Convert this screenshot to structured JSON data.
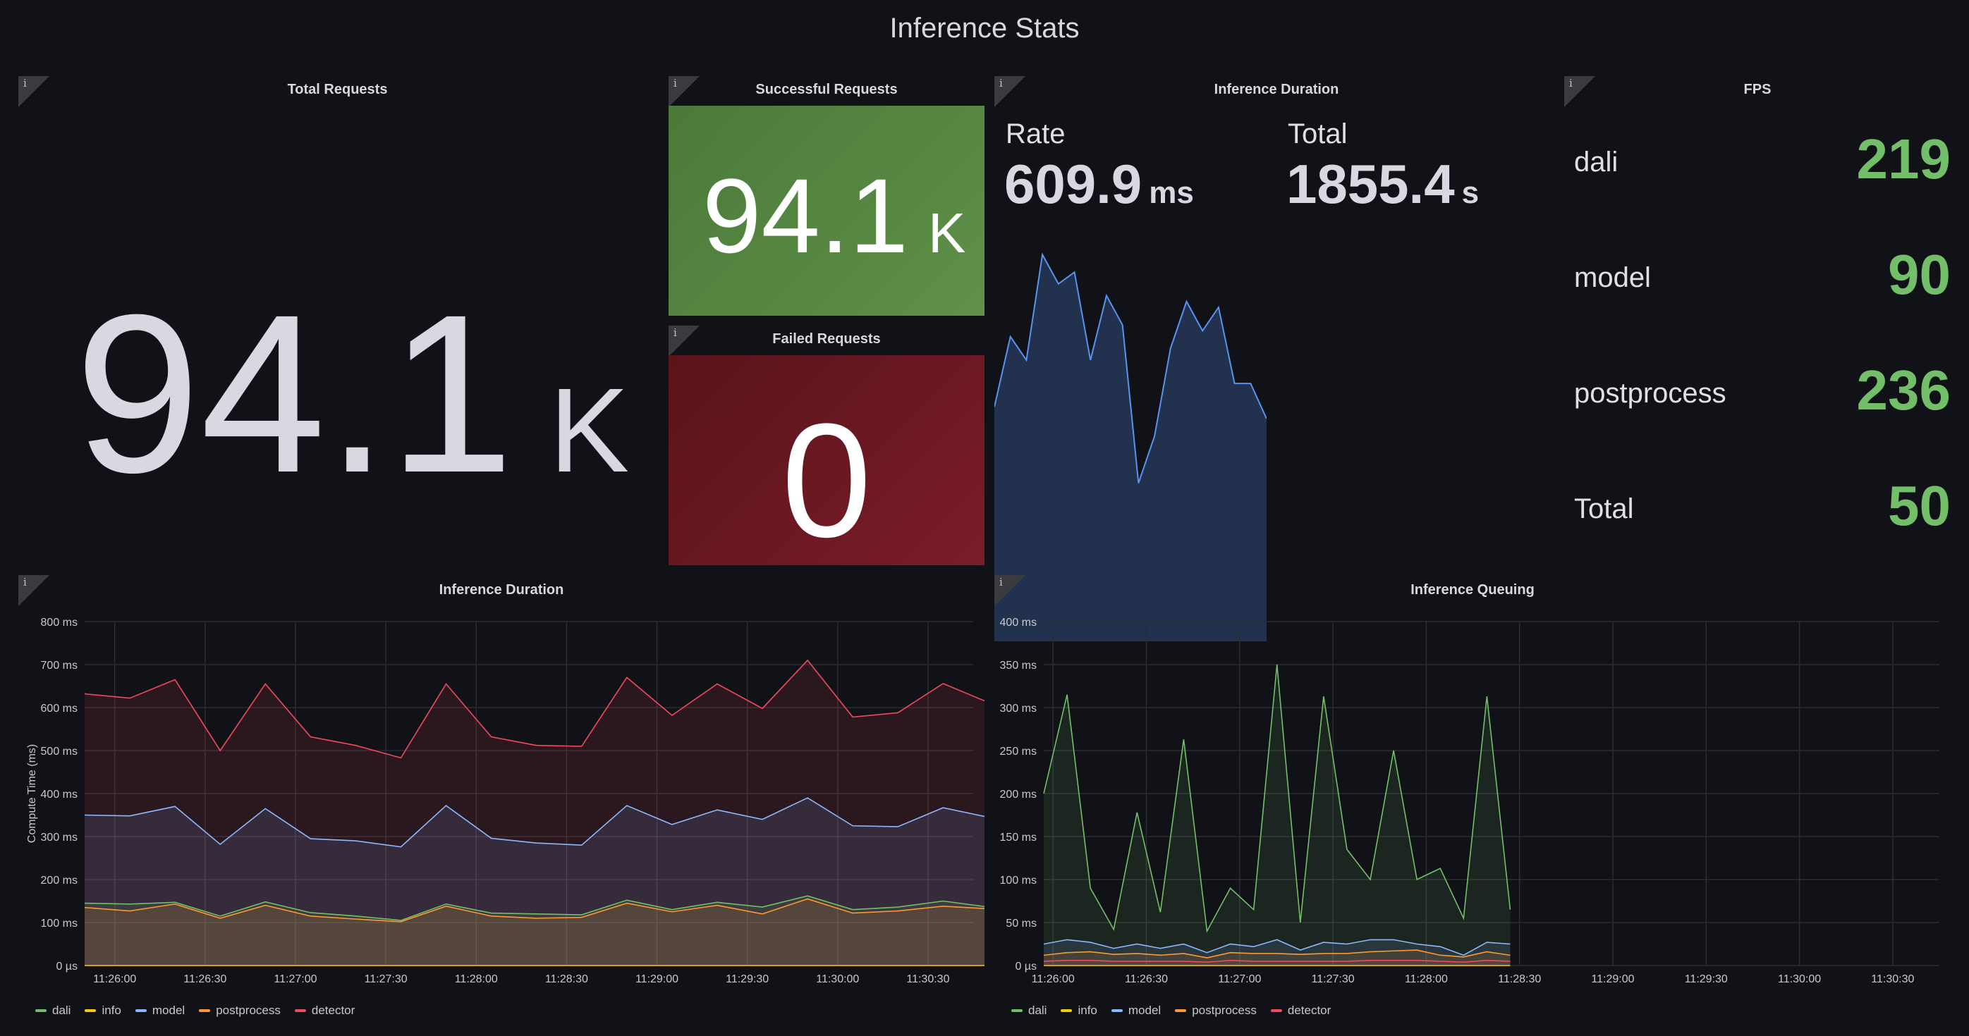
{
  "dashboard": {
    "title": "Inference Stats"
  },
  "panels": {
    "total_requests": {
      "title": "Total Requests",
      "value": "94.1",
      "unit": "K"
    },
    "successful_requests": {
      "title": "Successful Requests",
      "value": "94.1",
      "unit": "K"
    },
    "failed_requests": {
      "title": "Failed Requests",
      "value": "0"
    },
    "inference_duration_stat": {
      "title": "Inference Duration",
      "rate_label": "Rate",
      "rate_value": "609.9",
      "rate_unit": "ms",
      "total_label": "Total",
      "total_value": "1855.4",
      "total_unit": "s"
    },
    "fps": {
      "title": "FPS",
      "rows": [
        {
          "label": "dali",
          "value": "219"
        },
        {
          "label": "model",
          "value": "90"
        },
        {
          "label": "postprocess",
          "value": "236"
        },
        {
          "label": "Total",
          "value": "50"
        }
      ]
    },
    "info_icon": "i"
  },
  "colors": {
    "dali": "#73bf69",
    "info": "#f2cc0c",
    "model": "#8ab8ff",
    "postprocess": "#ff9830",
    "detector": "#f2495c",
    "success_bg": "#56893f",
    "failed_bg": "#6e1a24",
    "sparkline": "#5794f2"
  },
  "legend": [
    "dali",
    "info",
    "model",
    "postprocess",
    "detector"
  ],
  "chart_data": [
    {
      "type": "area",
      "title": "Inference Duration",
      "note": "sparkline",
      "series": [
        {
          "values": [
            40,
            52,
            48,
            66,
            61,
            63,
            48,
            59,
            54,
            27,
            35,
            50,
            58,
            53,
            57,
            44,
            44,
            38
          ]
        }
      ]
    },
    {
      "type": "line",
      "title": "Inference Duration",
      "ylabel": "Compute Time (ms)",
      "ylim": [
        0,
        800
      ],
      "yticks": [
        "0 µs",
        "100 ms",
        "200 ms",
        "300 ms",
        "400 ms",
        "500 ms",
        "600 ms",
        "700 ms",
        "800 ms"
      ],
      "xticks": [
        "11:26:00",
        "11:26:30",
        "11:27:00",
        "11:27:30",
        "11:28:00",
        "11:28:30",
        "11:29:00",
        "11:29:30",
        "11:30:00",
        "11:30:30"
      ],
      "x_start": "11:25:50",
      "x_end": "11:30:45",
      "x_step_s": 15,
      "series": [
        {
          "name": "dali",
          "values": [
            145,
            143,
            147,
            115,
            148,
            123,
            115,
            105,
            143,
            122,
            120,
            118,
            152,
            130,
            147,
            136,
            162,
            130,
            136,
            150,
            136
          ]
        },
        {
          "name": "info",
          "values": [
            0,
            0,
            0,
            0,
            0,
            0,
            0,
            0,
            0,
            0,
            0,
            0,
            0,
            0,
            0,
            0,
            0,
            0,
            0,
            0,
            0
          ]
        },
        {
          "name": "model",
          "values": [
            350,
            348,
            370,
            282,
            365,
            295,
            290,
            276,
            372,
            296,
            285,
            280,
            372,
            328,
            362,
            340,
            390,
            325,
            323,
            367,
            345
          ]
        },
        {
          "name": "postprocess",
          "values": [
            135,
            127,
            143,
            110,
            140,
            115,
            108,
            102,
            138,
            115,
            110,
            112,
            145,
            125,
            140,
            120,
            155,
            122,
            127,
            138,
            132
          ]
        },
        {
          "name": "detector",
          "values": [
            632,
            622,
            665,
            500,
            655,
            532,
            512,
            483,
            655,
            532,
            512,
            510,
            670,
            582,
            655,
            598,
            710,
            578,
            588,
            656,
            612
          ]
        }
      ]
    },
    {
      "type": "line",
      "title": "Inference Queuing",
      "ylim": [
        0,
        400
      ],
      "yticks": [
        "0 µs",
        "50 ms",
        "100 ms",
        "150 ms",
        "200 ms",
        "250 ms",
        "300 ms",
        "350 ms",
        "400 ms"
      ],
      "xticks": [
        "11:26:00",
        "11:26:30",
        "11:27:00",
        "11:27:30",
        "11:28:00",
        "11:28:30",
        "11:29:00",
        "11:29:30",
        "11:30:00",
        "11:30:30"
      ],
      "x_start": "11:25:57",
      "x_end": "11:30:45",
      "x_step_s": 7.5,
      "series": [
        {
          "name": "dali",
          "values": [
            200,
            315,
            90,
            42,
            178,
            62,
            263,
            40,
            90,
            65,
            350,
            50,
            313,
            135,
            100,
            250,
            100,
            113,
            55,
            313,
            65
          ]
        },
        {
          "name": "info",
          "values": [
            0,
            0,
            0,
            0,
            0,
            0,
            0,
            0,
            0,
            0,
            0,
            0,
            0,
            0,
            0,
            0,
            0,
            0,
            0,
            0,
            0
          ]
        },
        {
          "name": "model",
          "values": [
            25,
            30,
            27,
            20,
            25,
            20,
            25,
            15,
            25,
            22,
            30,
            18,
            27,
            25,
            30,
            30,
            25,
            22,
            12,
            27,
            25
          ]
        },
        {
          "name": "postprocess",
          "values": [
            12,
            15,
            16,
            13,
            14,
            12,
            14,
            9,
            15,
            14,
            14,
            13,
            14,
            14,
            16,
            17,
            18,
            12,
            10,
            16,
            12
          ]
        },
        {
          "name": "detector",
          "values": [
            5,
            6,
            6,
            5,
            5,
            5,
            5,
            4,
            6,
            5,
            5,
            5,
            5,
            5,
            6,
            6,
            6,
            5,
            4,
            6,
            5
          ]
        }
      ]
    }
  ]
}
